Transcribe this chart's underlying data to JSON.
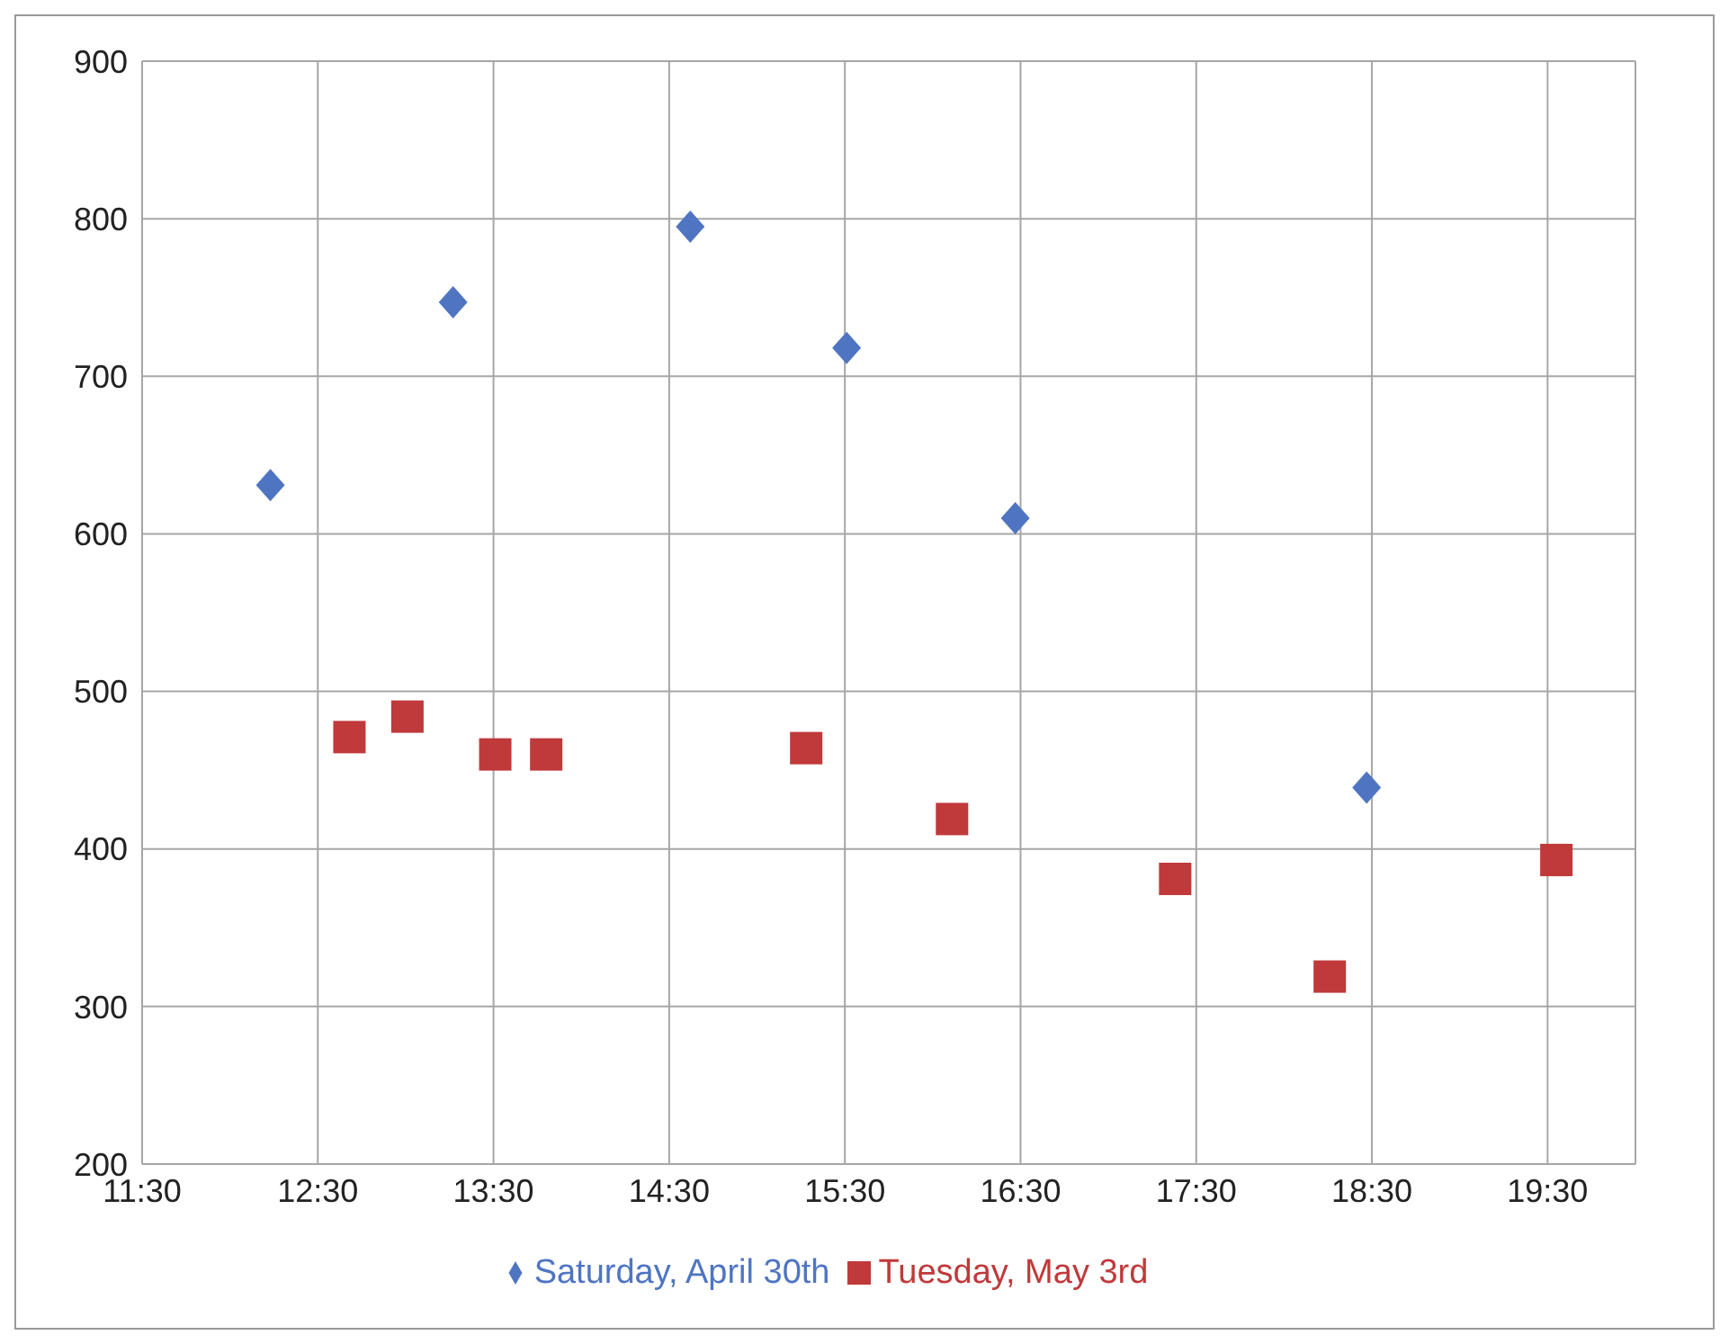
{
  "chart_data": {
    "type": "scatter",
    "xlim": [
      11.5,
      20
    ],
    "xticks": [
      {
        "value": 11.5,
        "label": "11:30"
      },
      {
        "value": 12.5,
        "label": "12:30"
      },
      {
        "value": 13.5,
        "label": "13:30"
      },
      {
        "value": 14.5,
        "label": "14:30"
      },
      {
        "value": 15.5,
        "label": "15:30"
      },
      {
        "value": 16.5,
        "label": "16:30"
      },
      {
        "value": 17.5,
        "label": "17:30"
      },
      {
        "value": 18.5,
        "label": "18:30"
      },
      {
        "value": 19.5,
        "label": "19:30"
      }
    ],
    "ylim": [
      200,
      900
    ],
    "yticks": [
      200,
      300,
      400,
      500,
      600,
      700,
      800,
      900
    ],
    "grid": true,
    "legend": "bottom",
    "series": [
      {
        "name": "Saturday, April 30th",
        "color": "#4f75c2",
        "marker": "diamond",
        "x": [
          12.23,
          13.27,
          14.62,
          15.51,
          16.47,
          18.47
        ],
        "values": [
          631,
          747,
          795,
          718,
          610,
          439
        ]
      },
      {
        "name": "Tuesday, May 3rd",
        "color": "#c0393b",
        "marker": "square",
        "x": [
          12.68,
          13.01,
          13.51,
          13.8,
          15.28,
          16.11,
          17.38,
          18.26,
          19.55
        ],
        "values": [
          471,
          484,
          460,
          460,
          464,
          419,
          381,
          319,
          393
        ]
      }
    ]
  }
}
